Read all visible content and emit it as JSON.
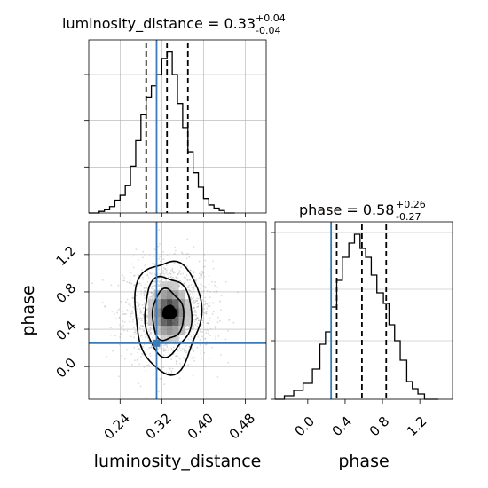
{
  "chart_data": [
    {
      "type": "histogram",
      "panel": "luminosity_distance-marginal",
      "title": {
        "param": "luminosity_distance",
        "median": "0.33",
        "plus": "+0.04",
        "minus": "-0.04"
      },
      "xlim": [
        0.18,
        0.52
      ],
      "quantiles": [
        0.29,
        0.33,
        0.37
      ],
      "truth": 0.31,
      "grid": true,
      "bins": [
        {
          "x0": 0.18,
          "x1": 0.2,
          "h": 0.0
        },
        {
          "x0": 0.2,
          "x1": 0.21,
          "h": 0.01
        },
        {
          "x0": 0.21,
          "x1": 0.22,
          "h": 0.02
        },
        {
          "x0": 0.22,
          "x1": 0.23,
          "h": 0.04
        },
        {
          "x0": 0.23,
          "x1": 0.24,
          "h": 0.08
        },
        {
          "x0": 0.24,
          "x1": 0.25,
          "h": 0.11
        },
        {
          "x0": 0.25,
          "x1": 0.26,
          "h": 0.17
        },
        {
          "x0": 0.26,
          "x1": 0.27,
          "h": 0.29
        },
        {
          "x0": 0.27,
          "x1": 0.28,
          "h": 0.45
        },
        {
          "x0": 0.28,
          "x1": 0.29,
          "h": 0.61
        },
        {
          "x0": 0.29,
          "x1": 0.3,
          "h": 0.72
        },
        {
          "x0": 0.3,
          "x1": 0.31,
          "h": 0.79
        },
        {
          "x0": 0.31,
          "x1": 0.32,
          "h": 0.86
        },
        {
          "x0": 0.32,
          "x1": 0.33,
          "h": 0.96
        },
        {
          "x0": 0.33,
          "x1": 0.34,
          "h": 1.0
        },
        {
          "x0": 0.34,
          "x1": 0.35,
          "h": 0.86
        },
        {
          "x0": 0.35,
          "x1": 0.36,
          "h": 0.68
        },
        {
          "x0": 0.36,
          "x1": 0.37,
          "h": 0.53
        },
        {
          "x0": 0.37,
          "x1": 0.38,
          "h": 0.38
        },
        {
          "x0": 0.38,
          "x1": 0.39,
          "h": 0.25
        },
        {
          "x0": 0.39,
          "x1": 0.4,
          "h": 0.16
        },
        {
          "x0": 0.4,
          "x1": 0.41,
          "h": 0.09
        },
        {
          "x0": 0.41,
          "x1": 0.42,
          "h": 0.05
        },
        {
          "x0": 0.42,
          "x1": 0.43,
          "h": 0.03
        },
        {
          "x0": 0.43,
          "x1": 0.44,
          "h": 0.015
        },
        {
          "x0": 0.44,
          "x1": 0.46,
          "h": 0.0
        }
      ]
    },
    {
      "type": "scatter",
      "panel": "phase-vs-luminosity_distance-2d",
      "xlabel": "luminosity_distance",
      "ylabel": "phase",
      "xlim": [
        0.18,
        0.52
      ],
      "ylim": [
        -0.35,
        1.55
      ],
      "xticks": [
        "0.24",
        "0.32",
        "0.40",
        "0.48"
      ],
      "yticks": [
        "0.0",
        "0.4",
        "0.8",
        "1.2"
      ],
      "xtick_values": [
        0.24,
        0.32,
        0.4,
        0.48
      ],
      "ytick_values": [
        0.0,
        0.4,
        0.8,
        1.2
      ],
      "truth": [
        0.31,
        0.25
      ],
      "peak": [
        0.335,
        0.58
      ],
      "contour_levels": [
        {
          "rx": 0.063,
          "ry": 0.6
        },
        {
          "rx": 0.045,
          "ry": 0.42
        },
        {
          "rx": 0.03,
          "ry": 0.27
        },
        {
          "rx": 0.013,
          "ry": 0.07
        }
      ],
      "grid": true
    },
    {
      "type": "histogram",
      "panel": "phase-marginal",
      "title": {
        "param": "phase",
        "median": "0.58",
        "plus": "+0.26",
        "minus": "-0.27"
      },
      "xlabel": "phase",
      "xlim": [
        -0.35,
        1.55
      ],
      "xticks": [
        "0.0",
        "0.4",
        "0.8",
        "1.2"
      ],
      "xtick_values": [
        0.0,
        0.4,
        0.8,
        1.2
      ],
      "quantiles": [
        0.31,
        0.58,
        0.84
      ],
      "truth": 0.25,
      "grid": true,
      "bins": [
        {
          "x0": -0.35,
          "x1": -0.25,
          "h": 0.0
        },
        {
          "x0": -0.25,
          "x1": -0.15,
          "h": 0.02
        },
        {
          "x0": -0.15,
          "x1": -0.05,
          "h": 0.05
        },
        {
          "x0": -0.05,
          "x1": 0.05,
          "h": 0.09
        },
        {
          "x0": 0.05,
          "x1": 0.13,
          "h": 0.17
        },
        {
          "x0": 0.13,
          "x1": 0.19,
          "h": 0.31
        },
        {
          "x0": 0.19,
          "x1": 0.25,
          "h": 0.38
        },
        {
          "x0": 0.25,
          "x1": 0.31,
          "h": 0.52
        },
        {
          "x0": 0.31,
          "x1": 0.37,
          "h": 0.67
        },
        {
          "x0": 0.37,
          "x1": 0.44,
          "h": 0.8
        },
        {
          "x0": 0.44,
          "x1": 0.5,
          "h": 0.88
        },
        {
          "x0": 0.5,
          "x1": 0.56,
          "h": 0.93
        },
        {
          "x0": 0.56,
          "x1": 0.62,
          "h": 0.85
        },
        {
          "x0": 0.62,
          "x1": 0.68,
          "h": 0.8
        },
        {
          "x0": 0.68,
          "x1": 0.74,
          "h": 0.7
        },
        {
          "x0": 0.74,
          "x1": 0.81,
          "h": 0.6
        },
        {
          "x0": 0.81,
          "x1": 0.87,
          "h": 0.54
        },
        {
          "x0": 0.87,
          "x1": 0.93,
          "h": 0.42
        },
        {
          "x0": 0.93,
          "x1": 0.99,
          "h": 0.33
        },
        {
          "x0": 0.99,
          "x1": 1.06,
          "h": 0.22
        },
        {
          "x0": 1.06,
          "x1": 1.12,
          "h": 0.1
        },
        {
          "x0": 1.12,
          "x1": 1.18,
          "h": 0.06
        },
        {
          "x0": 1.18,
          "x1": 1.25,
          "h": 0.03
        },
        {
          "x0": 1.25,
          "x1": 1.4,
          "h": 0.0
        }
      ]
    }
  ],
  "colors": {
    "truth": "#3a7ab6",
    "line": "#000000",
    "grid": "#b0b0b0",
    "scatter": "#9a9a9a"
  }
}
